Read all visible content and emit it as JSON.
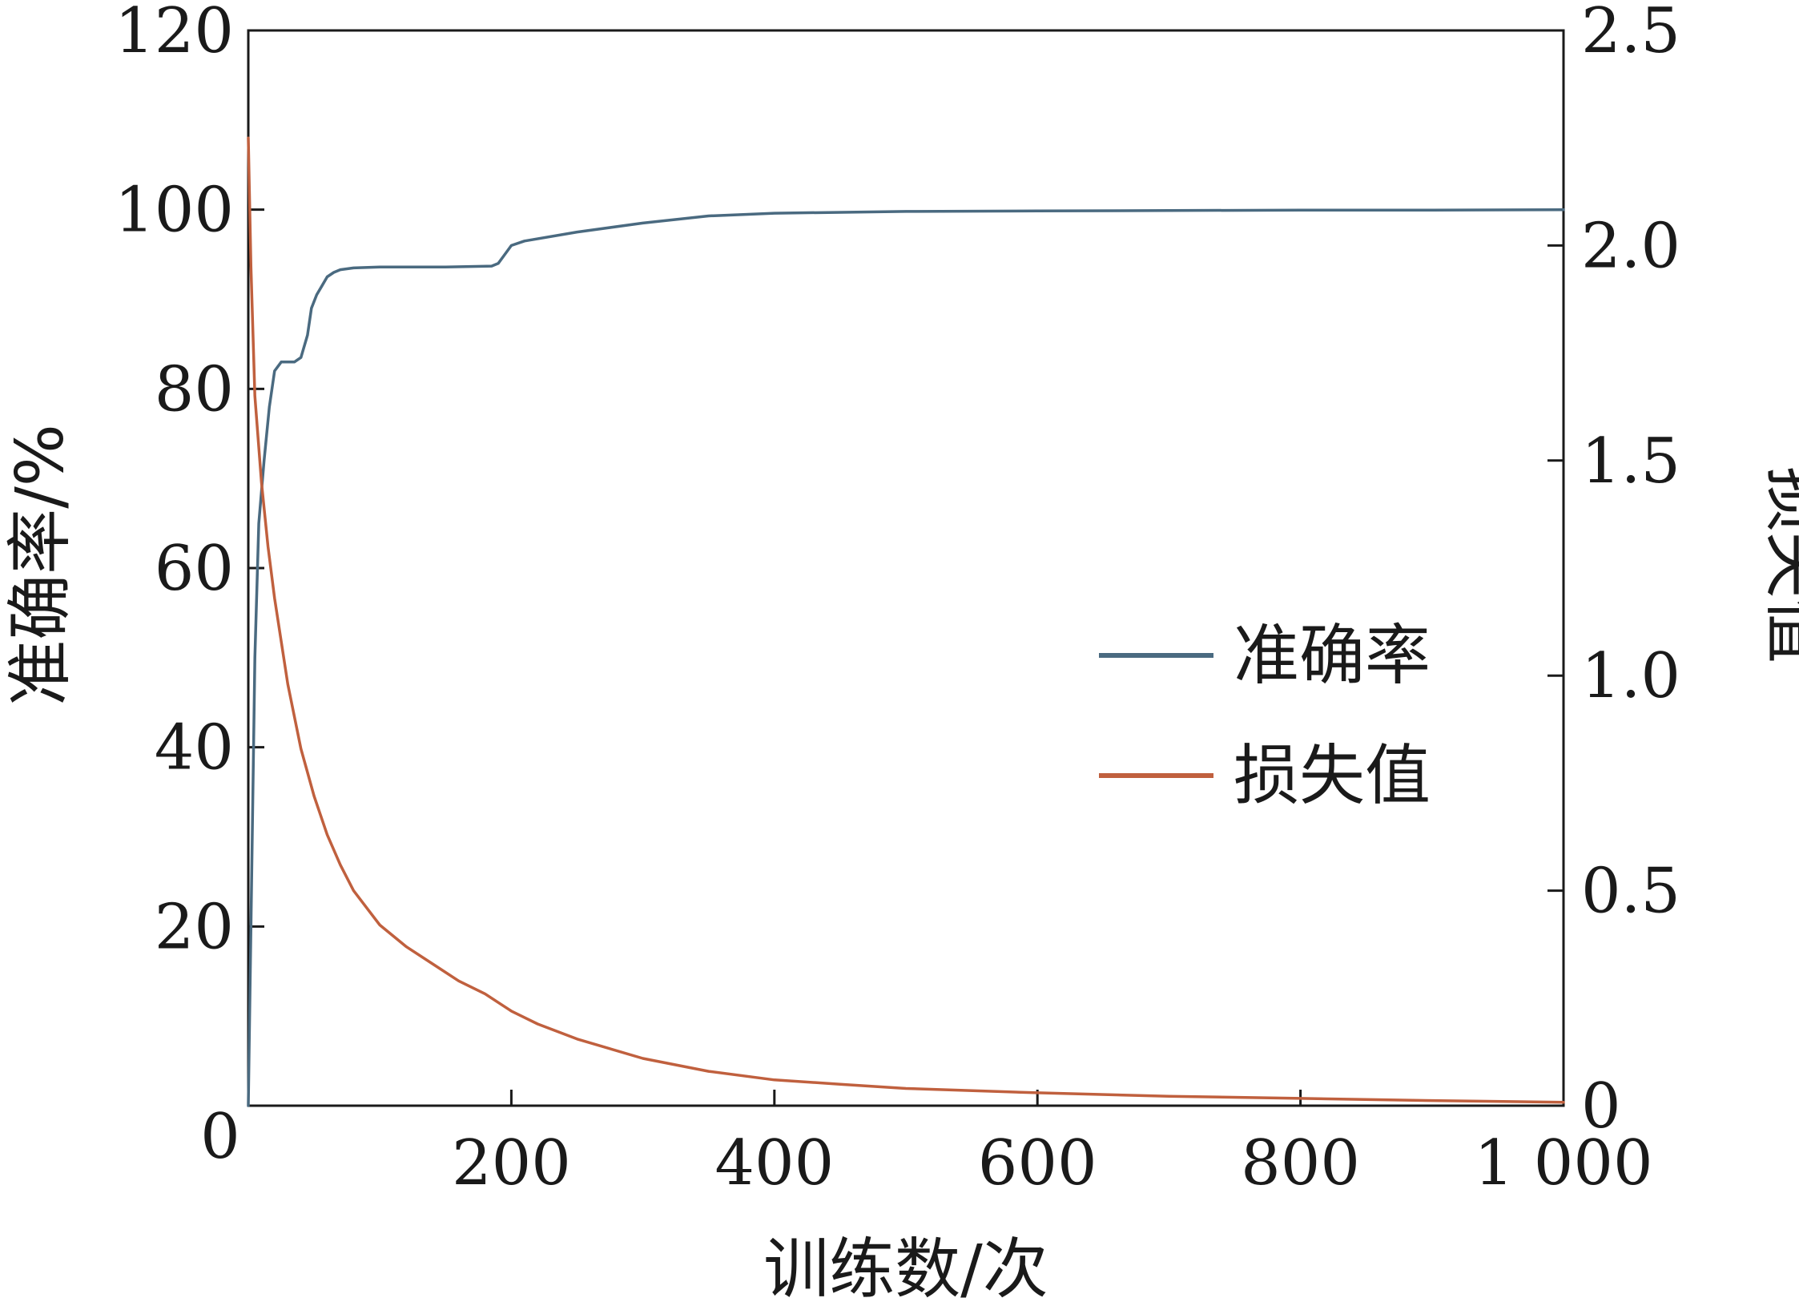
{
  "chart_data": {
    "type": "line",
    "xlabel": "训练数/次",
    "ylabel_left": "准确率/%",
    "ylabel_right": "损失值",
    "xlim": [
      0,
      1000
    ],
    "ylim_left": [
      0,
      120
    ],
    "ylim_right": [
      0,
      2.5
    ],
    "x_ticks": [
      200,
      400,
      600,
      800,
      1000
    ],
    "x_tick_labels": [
      "200",
      "400",
      "600",
      "800",
      "1 000"
    ],
    "y_left_ticks": [
      20,
      40,
      60,
      80,
      100,
      120
    ],
    "y_left_tick_labels": [
      "20",
      "40",
      "60",
      "80",
      "100",
      "120"
    ],
    "y_right_ticks": [
      0,
      0.5,
      1.0,
      1.5,
      2.0,
      2.5
    ],
    "y_right_tick_labels": [
      "0",
      "0.5",
      "1.0",
      "1.5",
      "2.0",
      "2.5"
    ],
    "origin_label": "0",
    "grid": false,
    "legend_position": "center-right",
    "series": [
      {
        "name": "准确率",
        "axis": "left",
        "color": "#4a6a80",
        "x": [
          0,
          2,
          5,
          8,
          12,
          16,
          20,
          25,
          30,
          35,
          40,
          45,
          48,
          52,
          56,
          60,
          65,
          70,
          80,
          100,
          150,
          185,
          190,
          195,
          200,
          210,
          250,
          300,
          350,
          400,
          500,
          600,
          700,
          800,
          900,
          1000
        ],
        "y": [
          0,
          20,
          50,
          65,
          72,
          78,
          82,
          83,
          83,
          83,
          83.5,
          86,
          89,
          90.5,
          91.5,
          92.5,
          93,
          93.3,
          93.5,
          93.6,
          93.6,
          93.7,
          94,
          95,
          96,
          96.5,
          97.5,
          98.5,
          99.3,
          99.6,
          99.8,
          99.85,
          99.9,
          99.95,
          99.95,
          100
        ]
      },
      {
        "name": "损失值",
        "axis": "right",
        "color": "#c0603e",
        "x": [
          0,
          2,
          5,
          10,
          15,
          20,
          30,
          40,
          50,
          60,
          70,
          80,
          90,
          100,
          120,
          140,
          160,
          180,
          190,
          200,
          220,
          250,
          300,
          350,
          400,
          450,
          500,
          600,
          700,
          800,
          900,
          1000
        ],
        "y": [
          2.25,
          1.95,
          1.65,
          1.45,
          1.3,
          1.18,
          0.98,
          0.83,
          0.72,
          0.63,
          0.56,
          0.5,
          0.46,
          0.42,
          0.37,
          0.33,
          0.29,
          0.26,
          0.24,
          0.22,
          0.19,
          0.155,
          0.11,
          0.08,
          0.06,
          0.05,
          0.04,
          0.03,
          0.022,
          0.017,
          0.012,
          0.008
        ]
      }
    ]
  }
}
